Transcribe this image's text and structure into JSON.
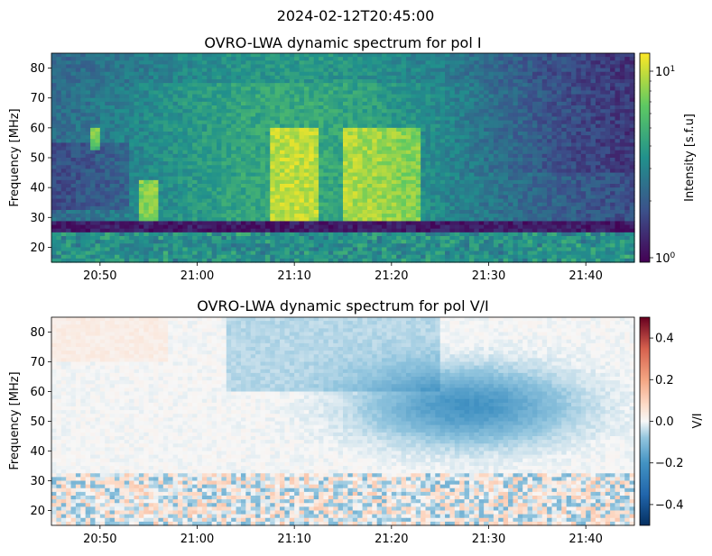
{
  "figure": {
    "suptitle": "2024-02-12T20:45:00"
  },
  "chart_data": [
    {
      "type": "heatmap",
      "title": "OVRO-LWA dynamic spectrum for pol I",
      "xlabel": "",
      "ylabel": "Frequency [MHz]",
      "x_ticks": [
        "20:50",
        "21:00",
        "21:10",
        "21:20",
        "21:30",
        "21:40"
      ],
      "x_tick_minutes": [
        5,
        15,
        25,
        35,
        45,
        55
      ],
      "x_range_minutes": [
        0,
        60
      ],
      "x_range_time": [
        "20:45",
        "21:45"
      ],
      "y_ticks": [
        20,
        30,
        40,
        50,
        60,
        70,
        80
      ],
      "ylim": [
        15,
        85
      ],
      "colormap": "viridis",
      "color_scale": "log",
      "colorbar": {
        "label": "Intensity [s.f.u]",
        "ticks": [
          "10^0",
          "10^1"
        ],
        "range": [
          0.9,
          14
        ]
      },
      "grid": false
    },
    {
      "type": "heatmap",
      "title": "OVRO-LWA dynamic spectrum for pol V/I",
      "xlabel": "",
      "ylabel": "Frequency [MHz]",
      "x_ticks": [
        "20:50",
        "21:00",
        "21:10",
        "21:20",
        "21:30",
        "21:40"
      ],
      "x_tick_minutes": [
        5,
        15,
        25,
        35,
        45,
        55
      ],
      "x_range_minutes": [
        0,
        60
      ],
      "x_range_time": [
        "20:45",
        "21:45"
      ],
      "y_ticks": [
        20,
        30,
        40,
        50,
        60,
        70,
        80
      ],
      "ylim": [
        15,
        85
      ],
      "colormap": "RdBu_r",
      "color_scale": "linear",
      "colorbar": {
        "label": "V/I",
        "ticks": [
          "−0.4",
          "−0.2",
          "0.0",
          "0.2",
          "0.4"
        ],
        "tick_values": [
          -0.4,
          -0.2,
          0.0,
          0.2,
          0.4
        ],
        "range": [
          -0.5,
          0.5
        ]
      },
      "grid": false
    }
  ]
}
